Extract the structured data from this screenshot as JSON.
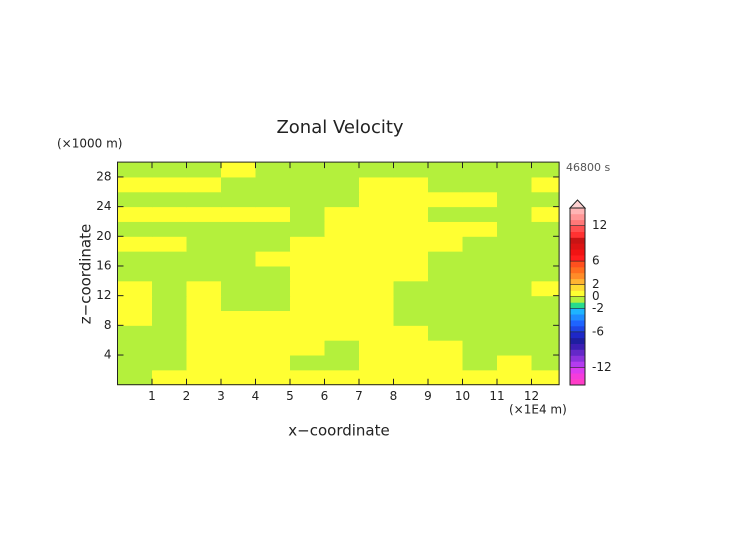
{
  "chart_data": {
    "type": "contour",
    "title": "Zonal Velocity",
    "y_unit_label": "(×1000 m)",
    "time_label": "46800 s",
    "x_unit_label": "(×1E4 m)",
    "xlabel": "x−coordinate",
    "ylabel": "z−coordinate",
    "xlim": [
      0,
      12.8
    ],
    "ylim": [
      0,
      30
    ],
    "xticks": [
      1,
      2,
      3,
      4,
      5,
      6,
      7,
      8,
      9,
      10,
      11,
      12
    ],
    "yticks": [
      4,
      8,
      12,
      16,
      20,
      24,
      28
    ],
    "xbins": [
      0,
      1,
      2,
      3,
      4,
      5,
      6,
      7,
      8,
      9,
      10,
      11,
      12,
      12.8
    ],
    "ybins": [
      0,
      2,
      4,
      6,
      8,
      10,
      12,
      14,
      16,
      18,
      20,
      22,
      24,
      26,
      28,
      30
    ],
    "values": [
      [
        -0.5,
        0.5,
        0.5,
        0.5,
        0.5,
        0.5,
        0.5,
        0.5,
        0.5,
        0.5,
        0.5,
        0.5,
        0.5
      ],
      [
        -0.5,
        -0.5,
        0.5,
        0.5,
        0.5,
        -0.5,
        -0.5,
        0.5,
        0.5,
        0.5,
        -0.5,
        0.5,
        -0.5
      ],
      [
        -0.5,
        -0.5,
        0.5,
        0.5,
        0.5,
        0.5,
        -0.5,
        0.5,
        0.5,
        0.5,
        -0.5,
        -0.5,
        -0.5
      ],
      [
        -0.5,
        -0.5,
        0.5,
        0.5,
        0.5,
        0.5,
        0.5,
        0.5,
        0.5,
        -0.5,
        -0.5,
        -0.5,
        -0.5
      ],
      [
        0.5,
        -0.5,
        0.5,
        0.5,
        0.5,
        0.5,
        0.5,
        0.5,
        -0.5,
        -0.5,
        -0.5,
        -0.5,
        -0.5
      ],
      [
        0.5,
        -0.5,
        0.5,
        -0.5,
        -0.5,
        0.5,
        0.5,
        0.5,
        -0.5,
        -0.5,
        -0.5,
        -0.5,
        -0.5
      ],
      [
        0.5,
        -0.5,
        0.5,
        -0.5,
        -0.5,
        0.5,
        0.5,
        0.5,
        -0.5,
        -0.5,
        -0.5,
        -0.5,
        0.5
      ],
      [
        -0.5,
        -0.5,
        -0.5,
        -0.5,
        -0.5,
        0.5,
        0.5,
        0.5,
        0.5,
        -0.5,
        -0.5,
        -0.5,
        -0.5
      ],
      [
        -0.5,
        -0.5,
        -0.5,
        -0.5,
        0.5,
        0.5,
        0.5,
        0.5,
        0.5,
        -0.5,
        -0.5,
        -0.5,
        -0.5
      ],
      [
        0.5,
        0.5,
        -0.5,
        -0.5,
        -0.5,
        0.5,
        0.5,
        0.5,
        0.5,
        0.5,
        -0.5,
        -0.5,
        -0.5
      ],
      [
        -0.5,
        -0.5,
        -0.5,
        -0.5,
        -0.5,
        -0.5,
        0.5,
        0.5,
        0.5,
        0.5,
        0.5,
        -0.5,
        -0.5
      ],
      [
        0.5,
        0.5,
        0.5,
        0.5,
        0.5,
        -0.5,
        0.5,
        0.5,
        0.5,
        -0.5,
        -0.5,
        -0.5,
        0.5
      ],
      [
        -0.5,
        -0.5,
        -0.5,
        -0.5,
        -0.5,
        -0.5,
        -0.5,
        0.5,
        0.5,
        0.5,
        0.5,
        -0.5,
        -0.5
      ],
      [
        0.5,
        0.5,
        0.5,
        -0.5,
        -0.5,
        -0.5,
        -0.5,
        0.5,
        0.5,
        -0.5,
        -0.5,
        -0.5,
        0.5
      ],
      [
        -0.5,
        -0.5,
        -0.5,
        0.5,
        -0.5,
        -0.5,
        -0.5,
        -0.5,
        -0.5,
        -0.5,
        -0.5,
        -0.5,
        -0.5
      ]
    ],
    "levels": [
      -15,
      -14,
      -13,
      -12,
      -11,
      -10,
      -9,
      -8,
      -7,
      -6,
      -5,
      -4,
      -3,
      -2,
      -1,
      0,
      1,
      2,
      3,
      4,
      5,
      6,
      7,
      8,
      9,
      10,
      11,
      12,
      13,
      14,
      15
    ],
    "colors": [
      "#ff3cc8",
      "#f53cdc",
      "#dc3cf0",
      "#b43cf0",
      "#8c32dc",
      "#6428c8",
      "#3c1eb4",
      "#1e1ea0",
      "#1e28c8",
      "#1e46e6",
      "#1e64ff",
      "#1e8cff",
      "#1eb4ff",
      "#28dc8c",
      "#b4f03c",
      "#ffff32",
      "#ffdc32",
      "#ffb432",
      "#ff8c28",
      "#ff6e1e",
      "#ff501e",
      "#ff1e1e",
      "#f01414",
      "#dc1414",
      "#c81414",
      "#ff3232",
      "#ff5050",
      "#ff7878",
      "#ff9696",
      "#ffb4b4"
    ],
    "colorbar_ticks": [
      12,
      6,
      2,
      0,
      -2,
      -6,
      -12
    ]
  }
}
